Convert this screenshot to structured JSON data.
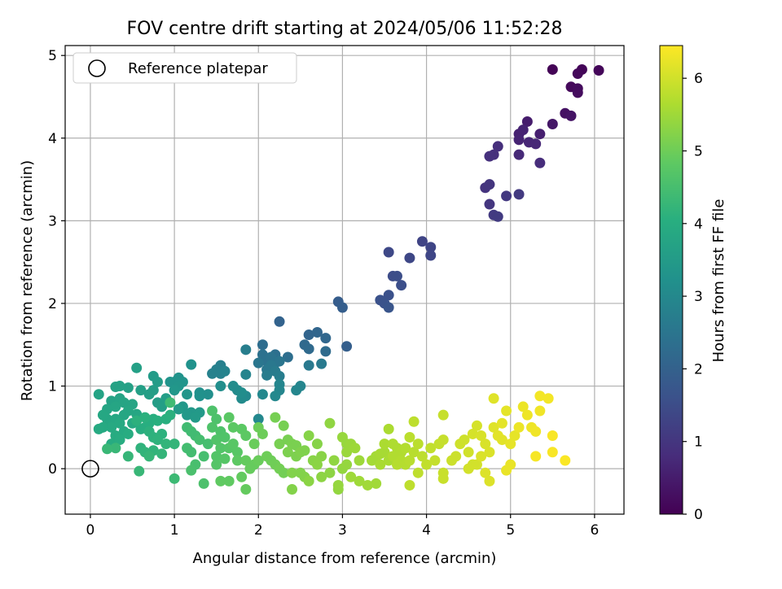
{
  "chart_data": {
    "type": "scatter",
    "title": "FOV centre drift starting at 2024/05/06 11:52:28",
    "xlabel": "Angular distance from reference (arcmin)",
    "ylabel": "Rotation from reference (arcmin)",
    "xlim": [
      -0.3,
      6.35
    ],
    "ylim": [
      -0.55,
      5.12
    ],
    "x_ticks": [
      "0",
      "1",
      "2",
      "3",
      "4",
      "5",
      "6"
    ],
    "y_ticks": [
      "0",
      "1",
      "2",
      "3",
      "4",
      "5"
    ],
    "grid": true,
    "legend": {
      "placement": "top-left",
      "entries": [
        {
          "label": "Reference platepar",
          "marker": "open-circle"
        }
      ]
    },
    "reference_point": {
      "x": 0,
      "y": 0
    },
    "colorbar": {
      "label": "Hours from first FF file",
      "range": [
        0,
        6.45
      ],
      "ticks": [
        "0",
        "1",
        "2",
        "3",
        "4",
        "5",
        "6"
      ],
      "colormap": "viridis"
    },
    "points": [
      [
        5.5,
        4.83,
        0.05
      ],
      [
        5.85,
        4.83,
        0.08
      ],
      [
        6.05,
        4.82,
        0.1
      ],
      [
        5.8,
        4.78,
        0.12
      ],
      [
        5.72,
        4.62,
        0.15
      ],
      [
        5.8,
        4.6,
        0.18
      ],
      [
        5.8,
        4.55,
        0.2
      ],
      [
        5.65,
        4.3,
        0.3
      ],
      [
        5.72,
        4.27,
        0.35
      ],
      [
        5.5,
        4.17,
        0.4
      ],
      [
        5.2,
        4.2,
        0.5
      ],
      [
        5.35,
        4.05,
        0.55
      ],
      [
        5.1,
        4.05,
        0.6
      ],
      [
        5.15,
        4.1,
        0.62
      ],
      [
        5.1,
        3.98,
        0.65
      ],
      [
        5.22,
        3.95,
        0.7
      ],
      [
        5.3,
        3.93,
        0.72
      ],
      [
        5.1,
        3.8,
        0.75
      ],
      [
        5.35,
        3.7,
        0.8
      ],
      [
        4.85,
        3.9,
        0.85
      ],
      [
        4.8,
        3.8,
        0.88
      ],
      [
        4.75,
        3.78,
        0.9
      ],
      [
        4.7,
        3.4,
        0.95
      ],
      [
        4.75,
        3.44,
        0.98
      ],
      [
        4.75,
        3.2,
        1.0
      ],
      [
        4.95,
        3.3,
        1.05
      ],
      [
        5.1,
        3.32,
        1.08
      ],
      [
        4.8,
        3.07,
        1.1
      ],
      [
        4.85,
        3.05,
        1.12
      ],
      [
        3.95,
        2.75,
        1.3
      ],
      [
        4.05,
        2.68,
        1.32
      ],
      [
        4.05,
        2.58,
        1.35
      ],
      [
        3.8,
        2.55,
        1.38
      ],
      [
        3.55,
        2.62,
        1.4
      ],
      [
        3.6,
        2.33,
        1.5
      ],
      [
        3.65,
        2.33,
        1.52
      ],
      [
        3.7,
        2.22,
        1.55
      ],
      [
        3.55,
        2.1,
        1.6
      ],
      [
        3.45,
        2.04,
        1.62
      ],
      [
        3.5,
        2.0,
        1.65
      ],
      [
        3.55,
        1.95,
        1.7
      ],
      [
        2.95,
        2.02,
        1.9
      ],
      [
        3.0,
        1.95,
        1.92
      ],
      [
        3.05,
        1.48,
        1.95
      ],
      [
        2.25,
        1.78,
        2.05
      ],
      [
        2.6,
        1.62,
        2.1
      ],
      [
        2.7,
        1.65,
        2.12
      ],
      [
        2.8,
        1.58,
        2.15
      ],
      [
        2.55,
        1.5,
        2.2
      ],
      [
        2.6,
        1.45,
        2.22
      ],
      [
        2.8,
        1.42,
        2.25
      ],
      [
        2.05,
        1.5,
        2.3
      ],
      [
        2.35,
        1.35,
        2.32
      ],
      [
        2.2,
        1.38,
        2.35
      ],
      [
        2.05,
        1.38,
        2.4
      ],
      [
        2.1,
        1.3,
        2.42
      ],
      [
        2.15,
        1.35,
        2.45
      ],
      [
        2.2,
        1.28,
        2.48
      ],
      [
        2.25,
        1.3,
        2.5
      ],
      [
        2.0,
        1.28,
        2.52
      ],
      [
        2.1,
        1.2,
        2.55
      ],
      [
        2.15,
        1.25,
        2.58
      ],
      [
        2.6,
        1.25,
        2.6
      ],
      [
        2.75,
        1.27,
        2.62
      ],
      [
        2.2,
        1.18,
        2.65
      ],
      [
        2.1,
        1.13,
        2.68
      ],
      [
        2.25,
        1.12,
        2.7
      ],
      [
        1.85,
        1.44,
        2.72
      ],
      [
        1.55,
        1.25,
        2.75
      ],
      [
        1.5,
        1.2,
        2.78
      ],
      [
        1.55,
        1.15,
        2.8
      ],
      [
        1.45,
        1.15,
        2.82
      ],
      [
        1.6,
        1.18,
        2.85
      ],
      [
        1.85,
        1.14,
        2.88
      ],
      [
        2.25,
        1.02,
        2.9
      ],
      [
        2.5,
        1.0,
        2.92
      ],
      [
        2.45,
        0.95,
        2.95
      ],
      [
        2.25,
        0.95,
        2.95
      ],
      [
        2.2,
        0.88,
        2.98
      ],
      [
        2.05,
        0.9,
        3.0
      ],
      [
        2.0,
        0.6,
        3.0
      ],
      [
        1.85,
        0.88,
        3.02
      ],
      [
        1.75,
        0.95,
        3.05
      ],
      [
        1.8,
        0.85,
        3.08
      ],
      [
        1.7,
        1.0,
        3.1
      ],
      [
        1.8,
        0.92,
        3.12
      ],
      [
        1.55,
        1.0,
        3.15
      ],
      [
        1.4,
        0.9,
        3.18
      ],
      [
        1.3,
        0.92,
        3.2
      ],
      [
        1.3,
        0.88,
        3.22
      ],
      [
        1.2,
        1.26,
        3.25
      ],
      [
        1.05,
        1.1,
        3.28
      ],
      [
        1.0,
        1.05,
        3.3
      ],
      [
        1.1,
        1.05,
        3.3
      ],
      [
        0.95,
        1.05,
        3.32
      ],
      [
        1.05,
        1.0,
        3.35
      ],
      [
        1.15,
        0.9,
        3.35
      ],
      [
        1.0,
        0.95,
        3.38
      ],
      [
        1.1,
        0.75,
        3.4
      ],
      [
        1.2,
        0.68,
        3.42
      ],
      [
        1.3,
        0.68,
        3.45
      ],
      [
        1.15,
        0.65,
        3.45
      ],
      [
        1.25,
        0.62,
        3.48
      ],
      [
        1.05,
        0.72,
        3.5
      ],
      [
        0.75,
        1.12,
        3.5
      ],
      [
        0.8,
        1.05,
        3.52
      ],
      [
        0.75,
        0.95,
        3.55
      ],
      [
        0.8,
        0.8,
        3.55
      ],
      [
        0.9,
        0.85,
        3.58
      ],
      [
        0.7,
        0.9,
        3.6
      ],
      [
        0.85,
        0.75,
        3.6
      ],
      [
        0.6,
        0.95,
        3.62
      ],
      [
        0.55,
        1.22,
        3.65
      ],
      [
        0.45,
        0.98,
        3.65
      ],
      [
        0.35,
        1.0,
        3.68
      ],
      [
        0.3,
        0.99,
        3.7
      ],
      [
        0.25,
        0.82,
        3.7
      ],
      [
        0.1,
        0.9,
        3.72
      ],
      [
        0.35,
        0.85,
        3.72
      ],
      [
        0.4,
        0.8,
        3.75
      ],
      [
        0.5,
        0.78,
        3.75
      ],
      [
        0.3,
        0.75,
        3.78
      ],
      [
        0.2,
        0.72,
        3.78
      ],
      [
        0.45,
        0.7,
        3.8
      ],
      [
        0.4,
        0.65,
        3.8
      ],
      [
        0.55,
        0.66,
        3.82
      ],
      [
        0.2,
        0.6,
        3.82
      ],
      [
        0.3,
        0.6,
        3.85
      ],
      [
        0.15,
        0.65,
        3.85
      ],
      [
        0.35,
        0.55,
        3.88
      ],
      [
        0.5,
        0.55,
        3.88
      ],
      [
        0.25,
        0.5,
        3.9
      ],
      [
        0.15,
        0.5,
        3.9
      ],
      [
        0.1,
        0.48,
        3.92
      ],
      [
        0.4,
        0.45,
        3.92
      ],
      [
        0.3,
        0.4,
        3.95
      ],
      [
        0.25,
        0.3,
        3.95
      ],
      [
        0.35,
        0.35,
        3.98
      ],
      [
        0.45,
        0.42,
        3.98
      ],
      [
        0.6,
        0.48,
        4.0
      ],
      [
        0.65,
        0.5,
        4.0
      ],
      [
        0.7,
        0.55,
        4.02
      ],
      [
        0.75,
        0.6,
        4.02
      ],
      [
        0.8,
        0.58,
        4.05
      ],
      [
        0.9,
        0.6,
        4.05
      ],
      [
        0.95,
        0.65,
        4.08
      ],
      [
        0.65,
        0.62,
        4.08
      ],
      [
        0.55,
        0.58,
        4.1
      ],
      [
        0.7,
        0.45,
        4.1
      ],
      [
        0.75,
        0.38,
        4.12
      ],
      [
        0.85,
        0.42,
        4.12
      ],
      [
        0.8,
        0.35,
        4.15
      ],
      [
        0.6,
        0.25,
        4.15
      ],
      [
        0.65,
        0.2,
        4.18
      ],
      [
        0.75,
        0.22,
        4.18
      ],
      [
        0.9,
        0.3,
        4.2
      ],
      [
        1.0,
        0.3,
        4.22
      ],
      [
        0.85,
        0.18,
        4.22
      ],
      [
        0.7,
        0.15,
        4.25
      ],
      [
        0.45,
        0.15,
        4.25
      ],
      [
        0.58,
        -0.03,
        4.28
      ],
      [
        0.3,
        0.25,
        4.28
      ],
      [
        0.2,
        0.24,
        4.3
      ],
      [
        1.0,
        -0.12,
        4.35
      ],
      [
        0.95,
        0.8,
        4.38
      ],
      [
        1.15,
        0.5,
        4.4
      ],
      [
        1.2,
        0.45,
        4.42
      ],
      [
        1.25,
        0.4,
        4.42
      ],
      [
        1.15,
        0.25,
        4.45
      ],
      [
        1.2,
        0.2,
        4.45
      ],
      [
        1.3,
        0.35,
        4.48
      ],
      [
        1.4,
        0.3,
        4.5
      ],
      [
        1.35,
        0.15,
        4.5
      ],
      [
        1.25,
        0.05,
        4.52
      ],
      [
        1.2,
        -0.02,
        4.55
      ],
      [
        1.35,
        -0.18,
        4.58
      ],
      [
        1.45,
        0.7,
        4.6
      ],
      [
        1.5,
        0.6,
        4.6
      ],
      [
        1.45,
        0.5,
        4.62
      ],
      [
        1.55,
        0.45,
        4.62
      ],
      [
        1.5,
        0.35,
        4.65
      ],
      [
        1.6,
        0.38,
        4.65
      ],
      [
        1.55,
        0.25,
        4.68
      ],
      [
        1.5,
        0.15,
        4.68
      ],
      [
        1.5,
        0.05,
        4.7
      ],
      [
        1.6,
        0.12,
        4.72
      ],
      [
        1.65,
        0.25,
        4.72
      ],
      [
        1.7,
        0.3,
        4.75
      ],
      [
        1.75,
        0.2,
        4.75
      ],
      [
        1.65,
        0.62,
        4.78
      ],
      [
        1.7,
        0.5,
        4.8
      ],
      [
        1.8,
        0.48,
        4.8
      ],
      [
        1.85,
        0.4,
        4.82
      ],
      [
        1.75,
        0.1,
        4.82
      ],
      [
        1.65,
        -0.15,
        4.85
      ],
      [
        1.55,
        -0.15,
        4.85
      ],
      [
        1.8,
        -0.1,
        4.88
      ],
      [
        1.85,
        -0.25,
        4.9
      ],
      [
        1.85,
        0.1,
        4.9
      ],
      [
        1.95,
        0.05,
        4.92
      ],
      [
        1.9,
        0.0,
        4.92
      ],
      [
        2.0,
        0.1,
        4.95
      ],
      [
        1.95,
        0.3,
        4.95
      ],
      [
        2.0,
        0.5,
        4.98
      ],
      [
        2.05,
        0.42,
        4.98
      ],
      [
        2.1,
        0.15,
        5.0
      ],
      [
        2.15,
        0.1,
        5.0
      ],
      [
        2.2,
        0.05,
        5.02
      ],
      [
        2.25,
        0.0,
        5.05
      ],
      [
        2.3,
        -0.05,
        5.05
      ],
      [
        2.2,
        0.62,
        5.08
      ],
      [
        2.3,
        0.52,
        5.08
      ],
      [
        2.25,
        0.3,
        5.1
      ],
      [
        2.35,
        0.35,
        5.1
      ],
      [
        2.4,
        0.3,
        5.12
      ],
      [
        2.45,
        0.28,
        5.12
      ],
      [
        2.35,
        0.2,
        5.15
      ],
      [
        2.45,
        0.15,
        5.15
      ],
      [
        2.5,
        0.2,
        5.18
      ],
      [
        2.55,
        0.22,
        5.18
      ],
      [
        2.4,
        -0.05,
        5.2
      ],
      [
        2.5,
        -0.05,
        5.2
      ],
      [
        2.55,
        -0.1,
        5.22
      ],
      [
        2.4,
        -0.25,
        5.22
      ],
      [
        2.6,
        0.4,
        5.25
      ],
      [
        2.7,
        0.3,
        5.25
      ],
      [
        2.65,
        0.1,
        5.28
      ],
      [
        2.75,
        0.15,
        5.28
      ],
      [
        2.7,
        0.05,
        5.3
      ],
      [
        2.6,
        -0.15,
        5.3
      ],
      [
        2.75,
        -0.1,
        5.32
      ],
      [
        2.85,
        -0.05,
        5.32
      ],
      [
        2.85,
        0.55,
        5.35
      ],
      [
        2.9,
        0.1,
        5.35
      ],
      [
        2.95,
        -0.25,
        5.38
      ],
      [
        3.0,
        0.0,
        5.38
      ],
      [
        3.05,
        0.05,
        5.4
      ],
      [
        2.95,
        -0.2,
        5.4
      ],
      [
        3.0,
        0.38,
        5.42
      ],
      [
        3.05,
        0.3,
        5.42
      ],
      [
        3.1,
        0.3,
        5.45
      ],
      [
        3.05,
        0.2,
        5.45
      ],
      [
        3.15,
        0.25,
        5.48
      ],
      [
        3.2,
        0.1,
        5.48
      ],
      [
        3.1,
        -0.1,
        5.5
      ],
      [
        3.2,
        -0.15,
        5.5
      ],
      [
        3.3,
        -0.2,
        5.52
      ],
      [
        3.4,
        -0.18,
        5.52
      ],
      [
        3.35,
        0.1,
        5.55
      ],
      [
        3.4,
        0.15,
        5.55
      ],
      [
        3.45,
        0.18,
        5.58
      ],
      [
        3.5,
        0.2,
        5.58
      ],
      [
        3.45,
        0.05,
        5.6
      ],
      [
        3.55,
        0.1,
        5.6
      ],
      [
        3.5,
        0.3,
        5.62
      ],
      [
        3.55,
        0.48,
        5.62
      ],
      [
        3.6,
        0.3,
        5.65
      ],
      [
        3.65,
        0.25,
        5.65
      ],
      [
        3.6,
        0.15,
        5.68
      ],
      [
        3.7,
        0.2,
        5.68
      ],
      [
        3.75,
        0.25,
        5.7
      ],
      [
        3.7,
        0.1,
        5.7
      ],
      [
        3.65,
        0.05,
        5.72
      ],
      [
        3.75,
        0.05,
        5.72
      ],
      [
        3.8,
        0.1,
        5.75
      ],
      [
        3.85,
        0.2,
        5.75
      ],
      [
        3.8,
        0.38,
        5.78
      ],
      [
        3.9,
        0.3,
        5.78
      ],
      [
        3.85,
        0.57,
        5.8
      ],
      [
        3.95,
        0.15,
        5.8
      ],
      [
        3.8,
        -0.2,
        5.82
      ],
      [
        3.9,
        -0.05,
        5.82
      ],
      [
        4.0,
        0.05,
        5.85
      ],
      [
        4.05,
        0.25,
        5.85
      ],
      [
        4.1,
        0.1,
        5.88
      ],
      [
        4.15,
        0.3,
        5.88
      ],
      [
        4.2,
        0.35,
        5.9
      ],
      [
        4.2,
        0.65,
        5.9
      ],
      [
        4.2,
        -0.05,
        5.92
      ],
      [
        4.2,
        -0.12,
        5.92
      ],
      [
        4.3,
        0.1,
        5.95
      ],
      [
        4.35,
        0.15,
        5.95
      ],
      [
        4.4,
        0.3,
        5.98
      ],
      [
        4.45,
        0.35,
        5.98
      ],
      [
        4.5,
        0.2,
        6.0
      ],
      [
        4.55,
        0.05,
        6.0
      ],
      [
        4.5,
        0.0,
        6.02
      ],
      [
        4.6,
        0.05,
        6.02
      ],
      [
        4.55,
        0.42,
        6.05
      ],
      [
        4.6,
        0.52,
        6.05
      ],
      [
        4.65,
        0.4,
        6.08
      ],
      [
        4.7,
        0.3,
        6.08
      ],
      [
        4.65,
        0.15,
        6.1
      ],
      [
        4.75,
        0.2,
        6.1
      ],
      [
        4.7,
        -0.05,
        6.12
      ],
      [
        4.75,
        -0.15,
        6.12
      ],
      [
        4.8,
        0.85,
        6.15
      ],
      [
        4.8,
        0.5,
        6.15
      ],
      [
        4.85,
        0.4,
        6.18
      ],
      [
        4.9,
        0.35,
        6.18
      ],
      [
        4.9,
        0.55,
        6.2
      ],
      [
        4.95,
        0.7,
        6.2
      ],
      [
        5.0,
        0.3,
        6.22
      ],
      [
        5.05,
        0.4,
        6.22
      ],
      [
        5.0,
        0.05,
        6.25
      ],
      [
        4.95,
        -0.02,
        6.25
      ],
      [
        5.1,
        0.5,
        6.28
      ],
      [
        5.15,
        0.75,
        6.28
      ],
      [
        5.2,
        0.65,
        6.3
      ],
      [
        5.25,
        0.5,
        6.3
      ],
      [
        5.3,
        0.45,
        6.32
      ],
      [
        5.35,
        0.7,
        6.32
      ],
      [
        5.35,
        0.88,
        6.35
      ],
      [
        5.45,
        0.85,
        6.35
      ],
      [
        5.3,
        0.15,
        6.38
      ],
      [
        5.5,
        0.4,
        6.4
      ],
      [
        5.5,
        0.2,
        6.4
      ],
      [
        5.65,
        0.1,
        6.42
      ]
    ]
  }
}
